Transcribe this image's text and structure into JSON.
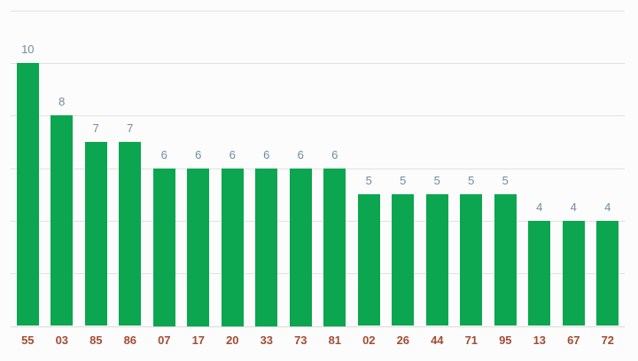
{
  "chart_data": {
    "type": "bar",
    "title": "",
    "xlabel": "",
    "ylabel": "",
    "categories": [
      "55",
      "03",
      "85",
      "86",
      "07",
      "17",
      "20",
      "33",
      "73",
      "81",
      "02",
      "26",
      "44",
      "71",
      "95",
      "13",
      "67",
      "72"
    ],
    "values": [
      10,
      8,
      7,
      7,
      6,
      6,
      6,
      6,
      6,
      6,
      5,
      5,
      5,
      5,
      5,
      4,
      4,
      4
    ],
    "ylim": [
      0,
      12
    ],
    "gridline_values": [
      0,
      2,
      4,
      6,
      8,
      10,
      12
    ],
    "grid": true,
    "legend": "none",
    "annotations": "values shown above bars",
    "colors": {
      "bar": "#0ba64f",
      "annotation_text": "#6f8ca3",
      "axis_label_text": "#a24d34",
      "gridline": "#e2e2e2",
      "baseline": "#d9d9d9",
      "background": "#fcfcfc"
    }
  }
}
